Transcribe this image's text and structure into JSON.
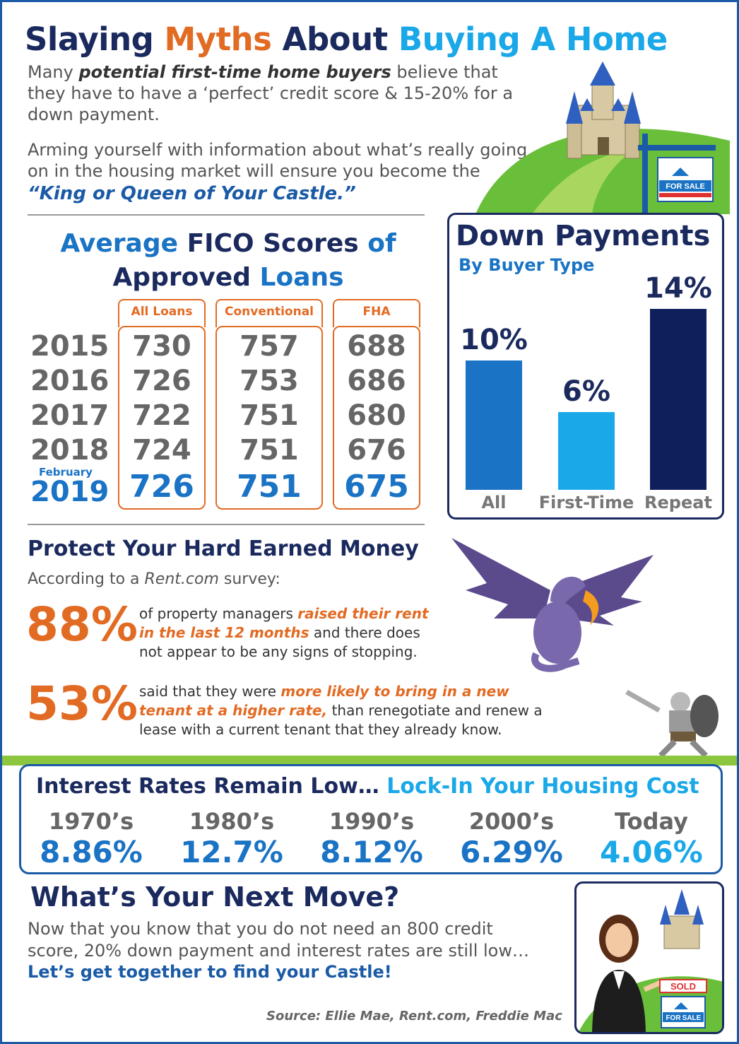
{
  "title": {
    "part1": "Slaying",
    "part2": "Myths",
    "part3": "About",
    "part4": "Buying A Home"
  },
  "intro": {
    "p1_a": "Many",
    "p1_b": "potential first-time home buyers",
    "p1_c": "believe that they have to have a ‘perfect’ credit score & 15-20% for a down payment.",
    "p2": "Arming yourself with information about what’s really going on in the housing market will ensure you become the",
    "p2_king": "“King or Queen of Your Castle.”"
  },
  "fico": {
    "title_a": "Average",
    "title_b": "FICO Scores",
    "title_c": "of",
    "title_d": "Approved",
    "title_e": "Loans",
    "headers": [
      "All Loans",
      "Conventional",
      "FHA"
    ],
    "years": [
      "2015",
      "2016",
      "2017",
      "2018",
      "2019"
    ],
    "feb_label": "February",
    "rows": [
      [
        "730",
        "757",
        "688"
      ],
      [
        "726",
        "753",
        "686"
      ],
      [
        "722",
        "751",
        "680"
      ],
      [
        "724",
        "751",
        "676"
      ],
      [
        "726",
        "751",
        "675"
      ]
    ]
  },
  "down_payments": {
    "title": "Down Payments",
    "subtitle": "By Buyer Type",
    "bars": [
      {
        "label": "All",
        "value_label": "10%",
        "value": 10,
        "color": "#1a73c4"
      },
      {
        "label": "First-Time",
        "value_label": "6%",
        "value": 6,
        "color": "#1aa8e8"
      },
      {
        "label": "Repeat",
        "value_label": "14%",
        "value": 14,
        "color": "#0e1f5c"
      }
    ]
  },
  "protect": {
    "title": "Protect Your Hard Earned Money",
    "subtitle_a": "According to a",
    "subtitle_b": "Rent.com",
    "subtitle_c": "survey:",
    "stat1": {
      "pct": "88%",
      "a": "of property managers",
      "b": "raised their rent in the last 12 months",
      "c": "and there does not appear to be any signs of stopping."
    },
    "stat2": {
      "pct": "53%",
      "a": "said that they were",
      "b": "more likely to bring in a new tenant at a higher rate,",
      "c": "than renegotiate and renew a lease with a current tenant that they already know."
    }
  },
  "interest": {
    "title_a": "Interest Rates Remain Low…",
    "title_b": "Lock-In Your Housing Cost",
    "decades": [
      "1970’s",
      "1980’s",
      "1990’s",
      "2000’s",
      "Today"
    ],
    "rates": [
      "8.86%",
      "12.7%",
      "8.12%",
      "6.29%",
      "4.06%"
    ]
  },
  "next_move": {
    "title": "What’s Your Next Move?",
    "body": "Now that you know that you do not need an 800 credit score, 20% down payment and interest rates are still low…",
    "cta": "Let’s get together to find your Castle!",
    "sold": "SOLD",
    "for_sale_a": "FOR",
    "for_sale_b": "SALE"
  },
  "source": "Source: Ellie Mae, Rent.com, Freddie Mac",
  "colors": {
    "navy": "#1b2a5e",
    "orange": "#e26b24",
    "blue": "#1a73c4",
    "cyan": "#1aa8e8",
    "green": "#8cc63f"
  }
}
